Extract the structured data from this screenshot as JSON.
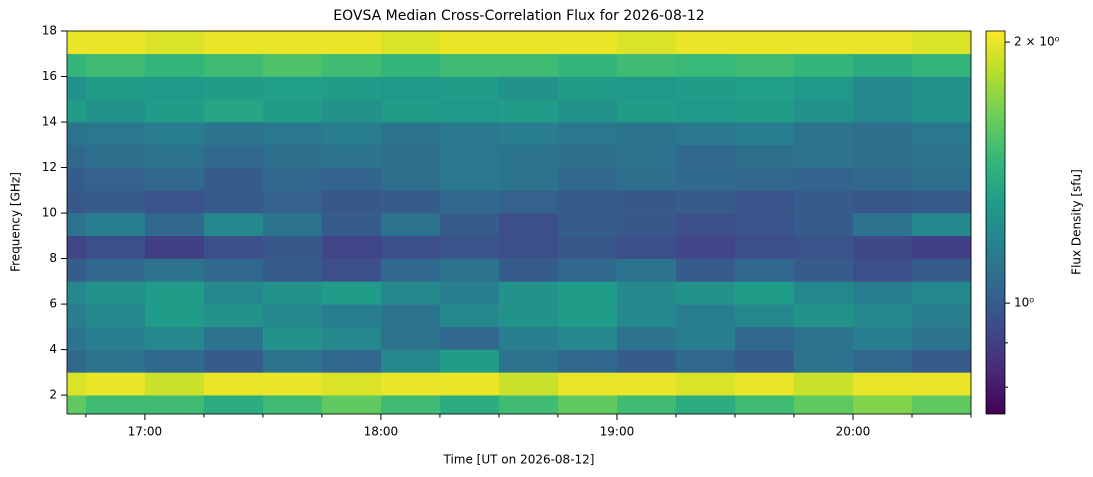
{
  "chart_data": {
    "type": "heatmap",
    "title": "EOVSA Median Cross-Correlation Flux for 2026-08-12",
    "xlabel": "Time [UT on 2026-08-12]",
    "ylabel": "Frequency [GHz]",
    "colorbar_label": "Flux Density [sfu]",
    "colormap": "viridis",
    "color_scale": "log",
    "xlim": [
      16.67,
      20.5
    ],
    "xticks": [
      {
        "value": 17,
        "label": "17:00"
      },
      {
        "value": 18,
        "label": "18:00"
      },
      {
        "value": 19,
        "label": "19:00"
      },
      {
        "value": 20,
        "label": "20:00"
      }
    ],
    "xminorticks": [
      16.75,
      17.25,
      17.5,
      17.75,
      18.25,
      18.5,
      18.75,
      19.25,
      19.5,
      19.75,
      20.25,
      20.5
    ],
    "ylim": [
      1.17,
      18
    ],
    "yticks": [
      2,
      4,
      6,
      8,
      10,
      12,
      14,
      16,
      18
    ],
    "clim": [
      0.745,
      2.06
    ],
    "cticks": [
      {
        "value": 2,
        "label": "2 × 10⁰"
      },
      {
        "value": 1,
        "label": "10⁰"
      }
    ],
    "cminorticks": [
      0.8,
      0.9
    ],
    "xbins": [
      16.67,
      16.75,
      17,
      17.25,
      17.5,
      17.75,
      18,
      18.25,
      18.5,
      18.75,
      19,
      19.25,
      19.5,
      19.75,
      20,
      20.25,
      20.5
    ],
    "ybins": [
      1.17,
      2,
      3,
      4,
      5,
      6,
      7,
      8,
      9,
      10,
      11,
      12,
      13,
      14,
      15,
      16,
      17,
      18
    ],
    "z": [
      [
        1.6,
        1.5,
        1.5,
        1.4,
        1.5,
        1.6,
        1.5,
        1.4,
        1.5,
        1.6,
        1.5,
        1.4,
        1.5,
        1.6,
        1.7,
        1.6
      ],
      [
        1.95,
        2.0,
        1.9,
        2.0,
        2.0,
        1.95,
        2.0,
        2.0,
        1.9,
        2.0,
        2.0,
        1.95,
        2.0,
        1.9,
        2.0,
        2.0
      ],
      [
        1.05,
        1.1,
        1.05,
        1.0,
        1.1,
        1.05,
        1.2,
        1.3,
        1.1,
        1.05,
        1.0,
        1.05,
        1.0,
        1.1,
        1.05,
        1.0
      ],
      [
        1.1,
        1.15,
        1.2,
        1.1,
        1.25,
        1.2,
        1.1,
        1.05,
        1.15,
        1.2,
        1.1,
        1.15,
        1.05,
        1.1,
        1.15,
        1.1
      ],
      [
        1.15,
        1.2,
        1.3,
        1.25,
        1.2,
        1.15,
        1.1,
        1.2,
        1.25,
        1.3,
        1.2,
        1.15,
        1.2,
        1.25,
        1.2,
        1.15
      ],
      [
        1.2,
        1.25,
        1.3,
        1.2,
        1.25,
        1.3,
        1.2,
        1.15,
        1.25,
        1.3,
        1.2,
        1.25,
        1.3,
        1.2,
        1.15,
        1.2
      ],
      [
        1.0,
        1.05,
        1.1,
        1.05,
        1.0,
        0.95,
        1.05,
        1.1,
        1.0,
        1.05,
        1.1,
        1.0,
        1.05,
        1.0,
        0.95,
        1.0
      ],
      [
        0.92,
        0.95,
        0.9,
        0.95,
        0.98,
        0.92,
        0.95,
        0.97,
        0.95,
        0.98,
        0.95,
        0.92,
        0.95,
        0.97,
        0.93,
        0.9
      ],
      [
        1.1,
        1.15,
        1.05,
        1.2,
        1.1,
        1.0,
        1.1,
        1.0,
        0.95,
        1.0,
        0.98,
        0.95,
        0.97,
        1.0,
        1.1,
        1.2
      ],
      [
        0.98,
        1.0,
        0.97,
        1.0,
        1.02,
        0.98,
        1.0,
        1.05,
        1.02,
        1.0,
        0.98,
        1.0,
        0.97,
        1.0,
        0.98,
        1.0
      ],
      [
        1.0,
        1.02,
        1.05,
        1.0,
        1.05,
        1.03,
        1.08,
        1.12,
        1.1,
        1.05,
        1.08,
        1.06,
        1.05,
        1.03,
        1.05,
        1.08
      ],
      [
        1.05,
        1.08,
        1.1,
        1.05,
        1.08,
        1.1,
        1.08,
        1.12,
        1.1,
        1.08,
        1.1,
        1.05,
        1.08,
        1.1,
        1.08,
        1.1
      ],
      [
        1.1,
        1.12,
        1.15,
        1.1,
        1.12,
        1.15,
        1.1,
        1.12,
        1.15,
        1.12,
        1.1,
        1.12,
        1.15,
        1.1,
        1.08,
        1.12
      ],
      [
        1.3,
        1.25,
        1.3,
        1.35,
        1.3,
        1.25,
        1.3,
        1.28,
        1.3,
        1.25,
        1.3,
        1.28,
        1.3,
        1.25,
        1.2,
        1.25
      ],
      [
        1.25,
        1.3,
        1.28,
        1.3,
        1.32,
        1.3,
        1.28,
        1.3,
        1.25,
        1.3,
        1.28,
        1.3,
        1.32,
        1.28,
        1.2,
        1.25
      ],
      [
        1.45,
        1.5,
        1.45,
        1.5,
        1.55,
        1.5,
        1.45,
        1.5,
        1.5,
        1.45,
        1.5,
        1.48,
        1.5,
        1.45,
        1.4,
        1.45
      ],
      [
        2.0,
        2.0,
        1.95,
        2.0,
        2.0,
        2.0,
        1.95,
        2.0,
        2.0,
        2.0,
        1.95,
        2.0,
        2.0,
        2.0,
        2.0,
        1.95
      ]
    ]
  }
}
